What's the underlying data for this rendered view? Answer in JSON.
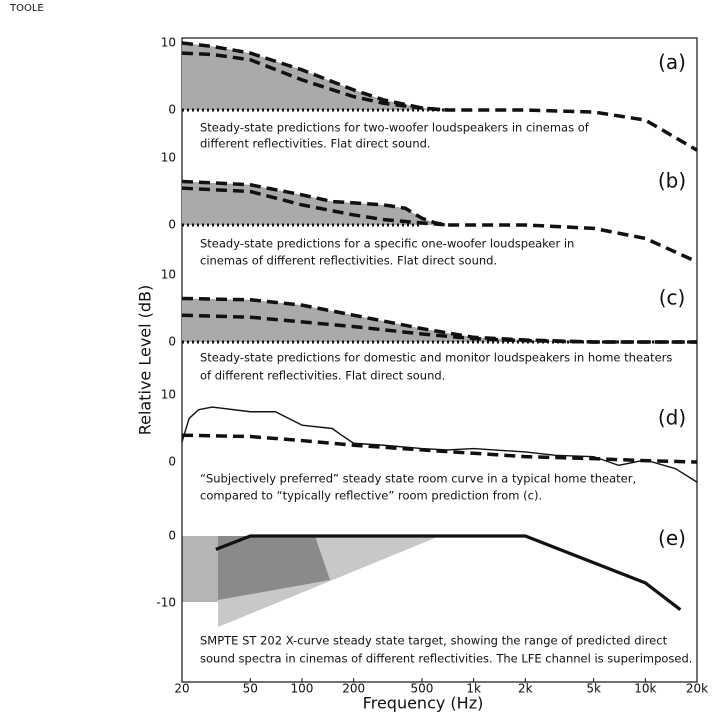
{
  "header": "TOOLE",
  "chart_data": [
    {
      "type": "line",
      "label": "(a)",
      "caption": [
        "Steady-state predictions for two-woofer loudspeakers in cinemas of",
        "different reflectivities. Flat direct sound."
      ],
      "ylim": [
        -7,
        10.5
      ],
      "yticks": [
        0,
        10
      ],
      "log_x": true,
      "xlim": [
        20,
        20000
      ],
      "series": [
        {
          "style": "dashed",
          "color": "#111",
          "fill": "#aaaaaa",
          "x": [
            20,
            30,
            50,
            100,
            200,
            300,
            500,
            700,
            1000,
            2000,
            5000,
            10000,
            20000
          ],
          "values": [
            10,
            9.5,
            8.5,
            6,
            3,
            1.5,
            0.3,
            0,
            0,
            0,
            -0.3,
            -1.5,
            -6
          ]
        },
        {
          "style": "dashed",
          "color": "#111",
          "x": [
            20,
            30,
            50,
            100,
            200,
            300,
            500,
            700
          ],
          "values": [
            8.5,
            8.3,
            7.5,
            4.5,
            2,
            1,
            0.3,
            0
          ]
        },
        {
          "style": "dotted",
          "color": "#111",
          "x": [
            20,
            700
          ],
          "values": [
            0,
            0
          ]
        }
      ]
    },
    {
      "type": "line",
      "label": "(b)",
      "caption": [
        "Steady-state predictions for a specific one-woofer loudspeaker in",
        "cinemas of different reflectivities. Flat direct sound."
      ],
      "ylim": [
        -8,
        10
      ],
      "yticks": [
        0,
        10
      ],
      "log_x": true,
      "xlim": [
        20,
        20000
      ],
      "series": [
        {
          "style": "dashed",
          "color": "#111",
          "fill": "#aaaaaa",
          "x": [
            20,
            30,
            50,
            100,
            150,
            200,
            300,
            400,
            500,
            600,
            700,
            1000,
            2000,
            5000,
            10000,
            20000
          ],
          "values": [
            6.5,
            6.3,
            6,
            4.5,
            3.5,
            3.3,
            3,
            2.5,
            1,
            0.3,
            0,
            0,
            0,
            -0.5,
            -2,
            -5.5
          ]
        },
        {
          "style": "dashed",
          "color": "#111",
          "x": [
            20,
            50,
            100,
            200,
            300,
            500,
            700
          ],
          "values": [
            5.5,
            5,
            3,
            1.5,
            0.8,
            0.3,
            0
          ]
        },
        {
          "style": "dotted",
          "color": "#111",
          "x": [
            20,
            500
          ],
          "values": [
            0,
            0
          ]
        }
      ]
    },
    {
      "type": "line",
      "label": "(c)",
      "caption": [
        "Steady-state predictions for domestic and monitor loudspeakers in home theaters",
        "of different reflectivities. Flat direct sound."
      ],
      "ylim": [
        -7,
        10
      ],
      "yticks": [
        0,
        10
      ],
      "log_x": true,
      "xlim": [
        20,
        20000
      ],
      "ylabel": "Relative Level (dB)",
      "series": [
        {
          "style": "dashed",
          "color": "#111",
          "fill": "#aaaaaa",
          "x": [
            20,
            50,
            100,
            200,
            500,
            1000,
            2000,
            5000,
            10000,
            20000
          ],
          "values": [
            6.5,
            6.3,
            5.5,
            4,
            2,
            0.7,
            0.3,
            0,
            0,
            0
          ]
        },
        {
          "style": "dashed",
          "color": "#111",
          "x": [
            20,
            50,
            100,
            200,
            500,
            1000,
            2000,
            5000,
            10000,
            20000
          ],
          "values": [
            4,
            3.7,
            3,
            2.3,
            1.2,
            0.5,
            0.2,
            0,
            0,
            0
          ]
        },
        {
          "style": "dotted",
          "color": "#111",
          "x": [
            20,
            20000
          ],
          "values": [
            0,
            0
          ]
        }
      ]
    },
    {
      "type": "line",
      "label": "(d)",
      "caption": [
        "“Subjectively preferred” steady state room curve in a typical home theater,",
        "compared to “typically reflective” room prediction from (c)."
      ],
      "ylim": [
        -8,
        10
      ],
      "yticks": [
        0,
        10
      ],
      "log_x": true,
      "xlim": [
        20,
        20000
      ],
      "series": [
        {
          "style": "solid",
          "color": "#111",
          "x": [
            20,
            22,
            25,
            30,
            50,
            70,
            100,
            150,
            170,
            200,
            300,
            500,
            700,
            1000,
            2000,
            3000,
            5000,
            7000,
            10000,
            15000,
            20000
          ],
          "values": [
            3,
            6.5,
            7.8,
            8.2,
            7.5,
            7.5,
            5.5,
            5,
            4,
            2.8,
            2.5,
            2,
            1.8,
            2,
            1.5,
            1,
            0.8,
            -0.5,
            0.3,
            -1,
            -3
          ]
        },
        {
          "style": "dashed",
          "color": "#111",
          "x": [
            20,
            50,
            100,
            200,
            500,
            1000,
            2000,
            5000,
            10000,
            20000
          ],
          "values": [
            4,
            3.8,
            3.2,
            2.5,
            1.8,
            1.3,
            0.8,
            0.5,
            0.2,
            0
          ]
        }
      ]
    },
    {
      "type": "line",
      "label": "(e)",
      "caption": [
        "SMPTE ST 202 X-curve steady state target, showing the range of predicted direct",
        "sound spectra in cinemas of different reflectivities.  The LFE channel is superimposed."
      ],
      "ylim": [
        -22,
        1
      ],
      "yticks": [
        0,
        -10
      ],
      "log_x": true,
      "xlim": [
        20,
        20000
      ],
      "xlabel": "Frequency (Hz)",
      "xticks": [
        20,
        50,
        100,
        200,
        500,
        {
          "value": 1000,
          "label": "1k"
        },
        {
          "value": 2000,
          "label": "2k"
        },
        {
          "value": 5000,
          "label": "5k"
        },
        {
          "value": 10000,
          "label": "10k"
        },
        {
          "value": 20000,
          "label": "20k"
        }
      ],
      "series": [
        {
          "style": "solid-thick",
          "color": "#111",
          "x": [
            31.5,
            50,
            2000,
            10000,
            16000
          ],
          "values": [
            -2,
            0,
            0,
            -7,
            -11
          ]
        }
      ]
    }
  ]
}
